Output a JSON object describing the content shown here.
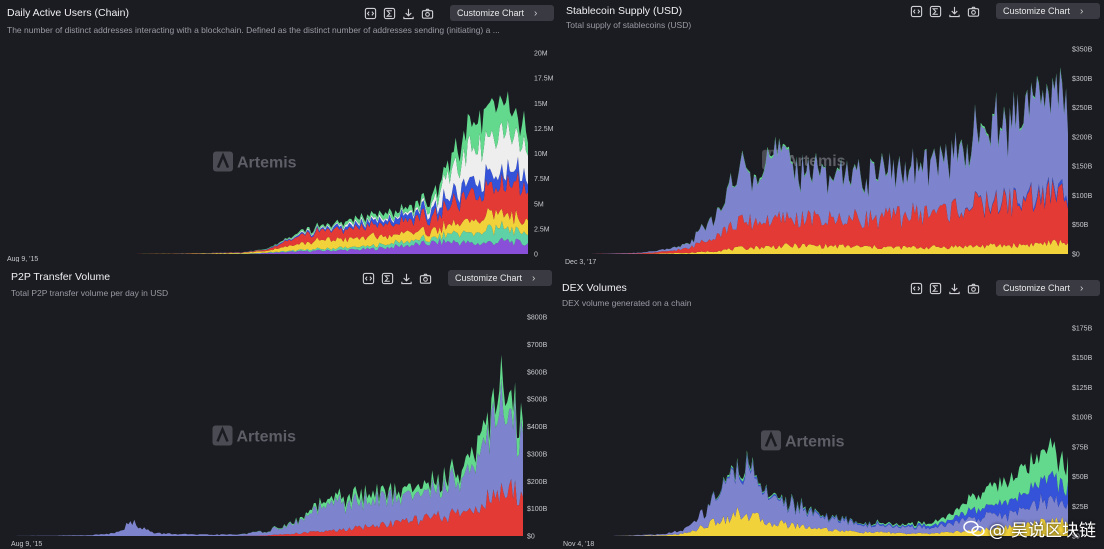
{
  "ui": {
    "customize_label": "Customize Chart",
    "watermark": "Artemis",
    "footer_watermark": "@ 吴说区块链",
    "icons": [
      "embed-icon",
      "sigma-icon",
      "download-icon",
      "camera-icon",
      "chevron-right-icon"
    ]
  },
  "chart_data": [
    {
      "type": "area",
      "stacked": true,
      "title": "Daily Active Users (Chain)",
      "subtitle": "The number of distinct addresses interacting with a blockchain. Defined as the distinct number of addresses sending (initiating) a ...",
      "x_start_label": "Aug 9, '15",
      "x": [
        0,
        0.08,
        0.16,
        0.24,
        0.32,
        0.4,
        0.46,
        0.5,
        0.54,
        0.58,
        0.62,
        0.66,
        0.7,
        0.74,
        0.78,
        0.8,
        0.82,
        0.84,
        0.86,
        0.88,
        0.9,
        0.92,
        0.94,
        0.96,
        0.98,
        1
      ],
      "y_ticks": [
        "0",
        "2.5M",
        "5M",
        "7.5M",
        "10M",
        "12.5M",
        "15M",
        "17.5M",
        "20M"
      ],
      "ylim": [
        0,
        20000000
      ],
      "series": [
        {
          "name": "purple",
          "color": "#8a4fd8",
          "values": [
            0,
            0,
            0,
            0,
            0,
            0,
            0,
            0.1,
            0.2,
            0.3,
            0.35,
            0.4,
            0.5,
            0.7,
            0.9,
            1.0,
            1.1,
            1.2,
            1.2,
            1.1,
            1.0,
            1.1,
            1.2,
            1.3,
            1.1,
            1.0
          ]
        },
        {
          "name": "teal",
          "color": "#5fd1a7",
          "values": [
            0,
            0,
            0,
            0,
            0,
            0.02,
            0.03,
            0.05,
            0.1,
            0.15,
            0.2,
            0.25,
            0.3,
            0.35,
            0.4,
            0.45,
            0.5,
            0.6,
            0.8,
            1.0,
            1.0,
            1.2,
            1.4,
            1.5,
            1.2,
            1.0
          ]
        },
        {
          "name": "yellow",
          "color": "#f2d23a",
          "values": [
            0,
            0,
            0,
            0,
            0.02,
            0.05,
            0.1,
            0.2,
            0.5,
            0.7,
            0.9,
            0.8,
            0.9,
            0.8,
            0.9,
            0.8,
            0.7,
            0.8,
            0.9,
            1.0,
            1.2,
            1.4,
            1.6,
            1.4,
            1.3,
            1.2
          ]
        },
        {
          "name": "red",
          "color": "#e33a36",
          "values": [
            0,
            0,
            0,
            0,
            0.01,
            0.03,
            0.05,
            0.1,
            0.5,
            0.8,
            1.0,
            1.0,
            1.2,
            1.1,
            1.3,
            1.4,
            1.6,
            1.8,
            2.0,
            2.3,
            2.5,
            2.8,
            3.0,
            3.2,
            3.5,
            3.4
          ]
        },
        {
          "name": "blue",
          "color": "#3453d9",
          "values": [
            0,
            0,
            0,
            0,
            0,
            0.01,
            0.02,
            0.04,
            0.1,
            0.15,
            0.2,
            0.3,
            0.4,
            0.5,
            0.6,
            0.7,
            0.8,
            0.9,
            1.0,
            1.1,
            1.2,
            1.3,
            1.3,
            1.4,
            1.2,
            1.0
          ]
        },
        {
          "name": "white",
          "color": "#eeeeef",
          "values": [
            0,
            0,
            0,
            0,
            0,
            0,
            0,
            0,
            0.05,
            0.1,
            0.1,
            0.2,
            0.2,
            0.2,
            0.2,
            0.3,
            0.5,
            2.0,
            2.5,
            3.0,
            3.5,
            3.5,
            3.8,
            3.5,
            3.0,
            2.5
          ]
        },
        {
          "name": "green",
          "color": "#62d98c",
          "values": [
            0,
            0,
            0,
            0,
            0,
            0,
            0,
            0.05,
            0.1,
            0.2,
            0.2,
            0.3,
            0.4,
            0.5,
            0.5,
            0.6,
            0.8,
            1.0,
            1.5,
            2.0,
            2.5,
            3.0,
            3.0,
            2.5,
            2.2,
            1.8
          ]
        }
      ],
      "value_unit": 1000000
    },
    {
      "type": "area",
      "stacked": true,
      "title": "Stablecoin Supply (USD)",
      "subtitle": "Total supply of stablecoins (USD)",
      "x_start_label": "Dec 3, '17",
      "x": [
        0,
        0.05,
        0.1,
        0.15,
        0.2,
        0.25,
        0.3,
        0.35,
        0.4,
        0.45,
        0.5,
        0.55,
        0.6,
        0.65,
        0.7,
        0.75,
        0.8,
        0.85,
        0.9,
        0.95,
        1
      ],
      "y_ticks": [
        "$0",
        "$50B",
        "$100B",
        "$150B",
        "$200B",
        "$250B",
        "$300B",
        "$350B"
      ],
      "ylim": [
        0,
        350000000000
      ],
      "series": [
        {
          "name": "yellow",
          "color": "#f2d23a",
          "values": [
            0,
            0,
            0,
            0,
            1,
            2,
            5,
            10,
            12,
            14,
            14,
            13,
            12,
            11,
            11,
            12,
            13,
            14,
            15,
            18,
            20
          ]
        },
        {
          "name": "red",
          "color": "#e33a36",
          "values": [
            0,
            0,
            0.5,
            1,
            3,
            8,
            30,
            42,
            45,
            45,
            45,
            46,
            48,
            52,
            58,
            62,
            68,
            72,
            76,
            80,
            82
          ]
        },
        {
          "name": "blue",
          "color": "#3453d9",
          "values": [
            0,
            0,
            0,
            0,
            0,
            0,
            0,
            0,
            0,
            0,
            0,
            0,
            0,
            0,
            0,
            0,
            1,
            2,
            3,
            5,
            6
          ]
        },
        {
          "name": "lavender",
          "color": "#7d83cc",
          "values": [
            0,
            0,
            0.5,
            1,
            3,
            8,
            35,
            85,
            110,
            95,
            78,
            80,
            78,
            72,
            73,
            85,
            105,
            125,
            140,
            160,
            170
          ]
        },
        {
          "name": "green",
          "color": "#62d98c",
          "values": [
            0,
            0,
            0,
            0,
            0,
            0.5,
            1,
            2,
            3,
            3,
            2,
            2,
            2,
            2,
            2,
            2,
            3,
            3,
            3,
            3,
            3
          ]
        }
      ],
      "value_unit": 1000000000
    },
    {
      "type": "area",
      "stacked": true,
      "title": "P2P Transfer Volume",
      "subtitle": "Total P2P transfer volume per day in USD",
      "x_start_label": "Aug 9, '15",
      "x": [
        0,
        0.08,
        0.16,
        0.2,
        0.24,
        0.28,
        0.36,
        0.44,
        0.5,
        0.56,
        0.6,
        0.64,
        0.68,
        0.72,
        0.76,
        0.8,
        0.84,
        0.88,
        0.9,
        0.92,
        0.94,
        0.96,
        0.98,
        1
      ],
      "y_ticks": [
        "$0",
        "$100B",
        "$200B",
        "$300B",
        "$400B",
        "$500B",
        "$600B",
        "$700B",
        "$800B"
      ],
      "ylim": [
        0,
        800000000000
      ],
      "series": [
        {
          "name": "red",
          "color": "#e33a36",
          "values": [
            0,
            0,
            0,
            0,
            0,
            0,
            0,
            0,
            2,
            10,
            15,
            20,
            30,
            40,
            50,
            60,
            70,
            80,
            100,
            120,
            140,
            150,
            160,
            170
          ]
        },
        {
          "name": "lavender",
          "color": "#7d83cc",
          "values": [
            0,
            1,
            3,
            10,
            50,
            10,
            5,
            5,
            15,
            40,
            80,
            100,
            90,
            100,
            90,
            100,
            110,
            140,
            160,
            200,
            260,
            300,
            250,
            200
          ]
        },
        {
          "name": "green",
          "color": "#62d98c",
          "values": [
            0,
            0,
            0,
            0,
            0,
            0,
            0,
            0,
            1,
            5,
            15,
            20,
            30,
            20,
            20,
            30,
            25,
            40,
            50,
            60,
            60,
            80,
            60,
            50
          ]
        }
      ],
      "value_unit": 1000000000
    },
    {
      "type": "area",
      "stacked": true,
      "title": "DEX Volumes",
      "subtitle": "DEX volume generated on a chain",
      "x_start_label": "Nov 4, '18",
      "x": [
        0,
        0.1,
        0.2,
        0.24,
        0.28,
        0.32,
        0.36,
        0.4,
        0.44,
        0.48,
        0.52,
        0.56,
        0.6,
        0.64,
        0.68,
        0.72,
        0.76,
        0.8,
        0.84,
        0.88,
        0.92,
        0.96,
        1
      ],
      "y_ticks": [
        "$0",
        "$25B",
        "$50B",
        "$75B",
        "$100B",
        "$125B",
        "$150B",
        "$175B"
      ],
      "ylim": [
        0,
        175000000000
      ],
      "series": [
        {
          "name": "yellow",
          "color": "#f2d23a",
          "values": [
            0,
            0,
            0.5,
            2,
            8,
            15,
            20,
            12,
            10,
            8,
            6,
            4,
            3,
            3,
            2,
            2,
            3,
            4,
            6,
            8,
            10,
            14,
            12
          ]
        },
        {
          "name": "lavender",
          "color": "#7d83cc",
          "values": [
            0,
            0,
            1,
            3,
            12,
            30,
            40,
            25,
            18,
            15,
            10,
            8,
            6,
            6,
            5,
            5,
            6,
            10,
            12,
            10,
            14,
            18,
            14
          ]
        },
        {
          "name": "blue",
          "color": "#3453d9",
          "values": [
            0,
            0,
            0,
            0,
            0,
            1,
            2,
            1,
            1,
            1,
            1,
            1,
            1,
            1,
            1,
            2,
            3,
            6,
            8,
            10,
            14,
            20,
            16
          ]
        },
        {
          "name": "green",
          "color": "#62d98c",
          "values": [
            0,
            0,
            0,
            0,
            0,
            1,
            2,
            1,
            1,
            1,
            0.5,
            0.5,
            0.5,
            1,
            1,
            2,
            4,
            8,
            14,
            18,
            22,
            25,
            20
          ]
        }
      ],
      "value_unit": 1000000000
    }
  ]
}
